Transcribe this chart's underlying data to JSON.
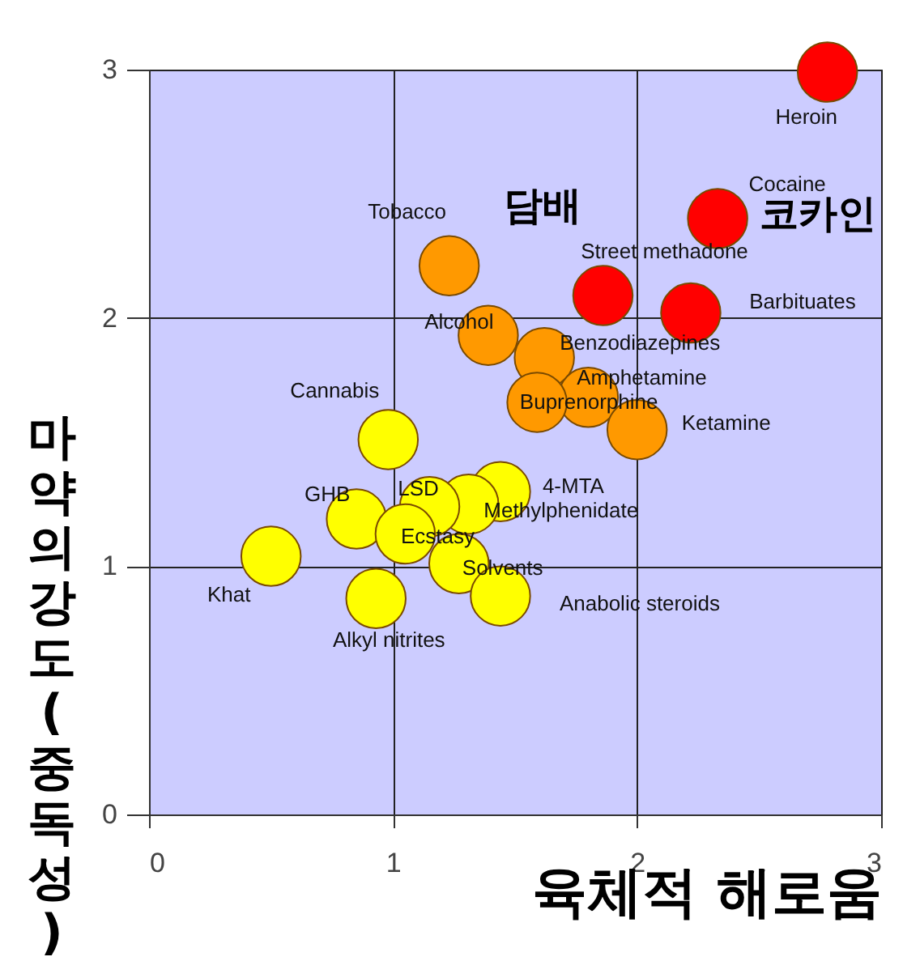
{
  "chart_data": {
    "type": "scatter",
    "xlabel": "육체적 해로움",
    "ylabel": "마약의 강도(중독성)",
    "xlim": [
      0,
      3
    ],
    "ylim": [
      0,
      3
    ],
    "xticks": [
      0,
      1,
      2,
      3
    ],
    "yticks": [
      0,
      1,
      2,
      3
    ],
    "grid": true,
    "marker": "circle",
    "series": [
      {
        "name": "Heroin",
        "color": "#ff0000",
        "x": [
          2.78
        ],
        "values": [
          2.99
        ]
      },
      {
        "name": "Cocaine",
        "color": "#ff0000",
        "x": [
          2.33
        ],
        "values": [
          2.4
        ]
      },
      {
        "name": "Street methadone",
        "color": "#ff0000",
        "x": [
          1.86
        ],
        "values": [
          2.09
        ]
      },
      {
        "name": "Barbituates",
        "color": "#ff0000",
        "x": [
          2.22
        ],
        "values": [
          2.02
        ]
      },
      {
        "name": "Tobacco",
        "color": "#ff9900",
        "x": [
          1.23
        ],
        "values": [
          2.21
        ]
      },
      {
        "name": "Alcohol",
        "color": "#ff9900",
        "x": [
          1.39
        ],
        "values": [
          1.93
        ]
      },
      {
        "name": "Benzodiazepines",
        "color": "#ff9900",
        "x": [
          1.62
        ],
        "values": [
          1.84
        ]
      },
      {
        "name": "Amphetamine",
        "color": "#ff9900",
        "x": [
          1.8
        ],
        "values": [
          1.68
        ]
      },
      {
        "name": "Buprenorphine",
        "color": "#ff9900",
        "x": [
          1.59
        ],
        "values": [
          1.66
        ]
      },
      {
        "name": "Ketamine",
        "color": "#ff9900",
        "x": [
          2.0
        ],
        "values": [
          1.55
        ]
      },
      {
        "name": "Cannabis",
        "color": "#ffff00",
        "x": [
          0.98
        ],
        "values": [
          1.51
        ]
      },
      {
        "name": "4-MTA",
        "color": "#ffff00",
        "x": [
          1.44
        ],
        "values": [
          1.3
        ]
      },
      {
        "name": "Methylphenidate",
        "color": "#ffff00",
        "x": [
          1.31
        ],
        "values": [
          1.25
        ]
      },
      {
        "name": "LSD",
        "color": "#ffff00",
        "x": [
          1.15
        ],
        "values": [
          1.24
        ]
      },
      {
        "name": "GHB",
        "color": "#ffff00",
        "x": [
          0.85
        ],
        "values": [
          1.19
        ]
      },
      {
        "name": "Ecstasy",
        "color": "#ffff00",
        "x": [
          1.05
        ],
        "values": [
          1.13
        ]
      },
      {
        "name": "Solvents",
        "color": "#ffff00",
        "x": [
          1.27
        ],
        "values": [
          1.01
        ]
      },
      {
        "name": "Anabolic steroids",
        "color": "#ffff00",
        "x": [
          1.44
        ],
        "values": [
          0.88
        ]
      },
      {
        "name": "Khat",
        "color": "#ffff00",
        "x": [
          0.5
        ],
        "values": [
          1.04
        ]
      },
      {
        "name": "Alkyl nitrites",
        "color": "#ffff00",
        "x": [
          0.93
        ],
        "values": [
          0.87
        ]
      }
    ],
    "annotations": [
      "담배",
      "코카인"
    ]
  }
}
